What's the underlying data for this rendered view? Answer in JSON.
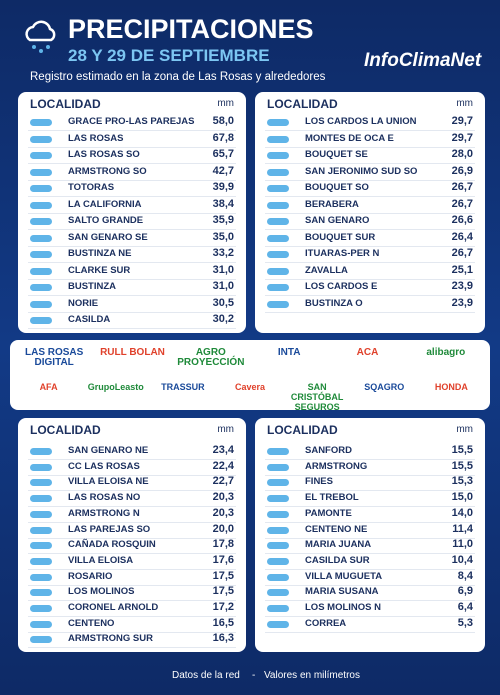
{
  "header": {
    "title": "PRECIPITACIONES",
    "date": "28 Y 29 DE SEPTIEMBRE",
    "subtitle": "Registro estimado en la zona de Las Rosas y alrededores",
    "brand": "InfoClimaNet"
  },
  "tables": [
    {
      "header": [
        "LOCALIDAD",
        "mm"
      ],
      "rows": [
        [
          "GRACE PRO-LAS PAREJAS",
          "58,0"
        ],
        [
          "LAS ROSAS",
          "67,8"
        ],
        [
          "LAS ROSAS SO",
          "65,7"
        ],
        [
          "ARMSTRONG SO",
          "42,7"
        ],
        [
          "TOTORAS",
          "39,9"
        ],
        [
          "LA CALIFORNIA",
          "38,4"
        ],
        [
          "SALTO GRANDE",
          "35,9"
        ],
        [
          "SAN GENARO SE",
          "35,0"
        ],
        [
          "BUSTINZA NE",
          "33,2"
        ],
        [
          "CLARKE SUR",
          "31,0"
        ],
        [
          "BUSTINZA",
          "31,0"
        ],
        [
          "NORIE",
          "30,5"
        ],
        [
          "CASILDA",
          "30,2"
        ]
      ]
    },
    {
      "header": [
        "LOCALIDAD",
        "mm"
      ],
      "rows": [
        [
          "LOS CARDOS LA UNION",
          "29,7"
        ],
        [
          "MONTES DE OCA E",
          "29,7"
        ],
        [
          "BOUQUET SE",
          "28,0"
        ],
        [
          "SAN JERONIMO SUD SO",
          "26,9"
        ],
        [
          "BOUQUET SO",
          "26,7"
        ],
        [
          "BERABERA",
          "26,7"
        ],
        [
          "SAN GENARO",
          "26,6"
        ],
        [
          "BOUQUET SUR",
          "26,4"
        ],
        [
          "ITUARAS-PER N",
          "26,7"
        ],
        [
          "ZAVALLA",
          "25,1"
        ],
        [
          "LOS CARDOS E",
          "23,9"
        ],
        [
          "BUSTINZA O",
          "23,9"
        ]
      ]
    },
    {
      "header": [
        "LOCALIDAD",
        "mm"
      ],
      "rows": [
        [
          "SAN GENARO NE",
          "23,4"
        ],
        [
          "CC LAS ROSAS",
          "22,4"
        ],
        [
          "VILLA ELOISA NE",
          "22,7"
        ],
        [
          "LAS ROSAS NO",
          "20,3"
        ],
        [
          "ARMSTRONG N",
          "20,3"
        ],
        [
          "LAS PAREJAS SO",
          "20,0"
        ],
        [
          "CAÑADA ROSQUIN",
          "17,8"
        ],
        [
          "VILLA ELOISA",
          "17,6"
        ],
        [
          "ROSARIO",
          "17,5"
        ],
        [
          "LOS MOLINOS",
          "17,5"
        ],
        [
          "CORONEL ARNOLD",
          "17,2"
        ],
        [
          "CENTENO",
          "16,5"
        ],
        [
          "ARMSTRONG SUR",
          "16,3"
        ]
      ]
    },
    {
      "header": [
        "LOCALIDAD",
        "mm"
      ],
      "rows": [
        [
          "SANFORD",
          "15,5"
        ],
        [
          "ARMSTRONG",
          "15,5"
        ],
        [
          "FINES",
          "15,3"
        ],
        [
          "EL TREBOL",
          "15,0"
        ],
        [
          "PAMONTE",
          "14,0"
        ],
        [
          "CENTENO NE",
          "11,4"
        ],
        [
          "MARIA JUANA",
          "11,0"
        ],
        [
          "CASILDA SUR",
          "10,4"
        ],
        [
          "VILLA MUGUETA",
          "8,4"
        ],
        [
          "MARIA SUSANA",
          "6,9"
        ],
        [
          "LOS MOLINOS N",
          "6,4"
        ],
        [
          "CORREA",
          "5,3"
        ]
      ]
    }
  ],
  "sponsors": [
    [
      "LAS ROSAS DIGITAL",
      "RULL BOLAN",
      "AGRO PROYECCIÓN",
      "INTA",
      "ACA",
      "alibagro"
    ],
    [
      "AFA",
      "GrupoLeasto",
      "TRASSUR",
      "Cavera",
      "SAN CRISTÓBAL SEGUROS",
      "SQAGRO",
      "HONDA"
    ]
  ],
  "footer": {
    "source": "Datos de la red",
    "separator": "-",
    "units": "Valores en milímetros"
  }
}
